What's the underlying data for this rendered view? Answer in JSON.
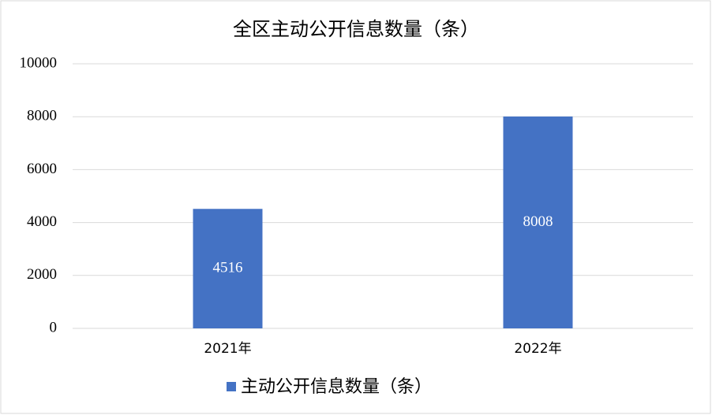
{
  "chart_data": {
    "type": "bar",
    "title": "全区主动公开信息数量（条）",
    "categories": [
      "2021年",
      "2022年"
    ],
    "series": [
      {
        "name": "主动公开信息数量（条）",
        "color": "#4472c4",
        "values": [
          4516,
          8008
        ]
      }
    ],
    "ylim": [
      0,
      10000
    ],
    "yticks": [
      0,
      2000,
      4000,
      6000,
      8000,
      10000
    ],
    "grid": true,
    "legend": "bottom"
  }
}
